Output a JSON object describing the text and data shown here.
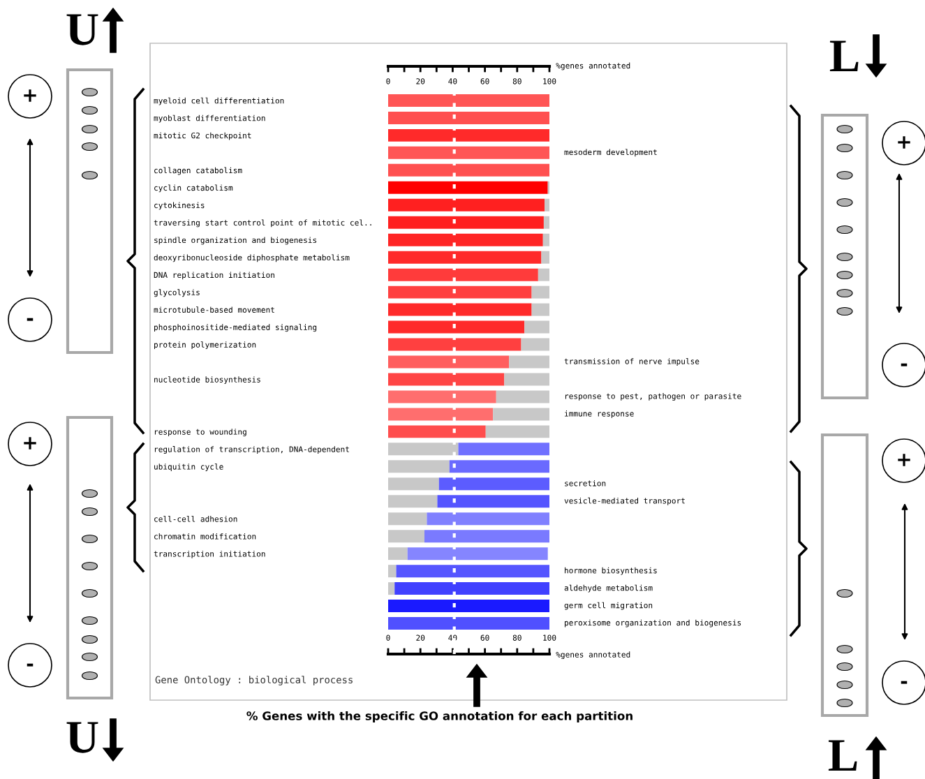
{
  "chart_data": {
    "type": "bar",
    "orientation": "horizontal",
    "stacked": true,
    "categories": [
      "myeloid cell differentiation",
      "myoblast differentiation",
      "mitotic G2 checkpoint",
      null,
      "collagen catabolism",
      "cyclin catabolism",
      "cytokinesis",
      "traversing start control point of mitotic cel..",
      "spindle organization and biogenesis",
      "deoxyribonucleoside diphosphate metabolism",
      "DNA replication initiation",
      "glycolysis",
      "microtubule-based movement",
      "phosphoinositide-mediated signaling",
      "protein polymerization",
      null,
      "nucleotide biosynthesis",
      null,
      null,
      "response to wounding",
      "regulation of transcription, DNA-dependent",
      "ubiquitin cycle",
      null,
      null,
      "cell-cell adhesion",
      "chromatin modification",
      "transcription initiation",
      null,
      null,
      null,
      null
    ],
    "y2_categories": [
      null,
      null,
      null,
      "mesoderm development",
      null,
      null,
      null,
      null,
      null,
      null,
      null,
      null,
      null,
      null,
      null,
      "transmission of nerve impulse",
      null,
      "response to pest, pathogen or parasite",
      "immune response",
      null,
      null,
      null,
      "secretion",
      "vesicle-mediated transport",
      null,
      null,
      null,
      "hormone biosynthesis",
      "aldehyde metabolism",
      "germ cell migration",
      "peroxisome organization and biogenesis"
    ],
    "series": [
      {
        "colors": [
          "#ff5555",
          "#ff5050",
          "#ff2a2a",
          "#ff5555",
          "#ff5050",
          "#ff0000",
          "#ff2020",
          "#ff2020",
          "#ff2525",
          "#ff2a2a",
          "#ff3b3b",
          "#ff4040",
          "#ff2a2a",
          "#ff2a2a",
          "#ff4040",
          "#ff5e5e",
          "#ff4545",
          "#ff6e6e",
          "#ff6e6e",
          "#ff4d4d",
          null,
          null,
          null,
          null,
          null,
          null,
          null,
          null,
          null,
          null,
          null
        ],
        "values": [
          100,
          100,
          100,
          100,
          100,
          99,
          97,
          96.5,
          96,
          95,
          93,
          89,
          89,
          84.5,
          82.5,
          75,
          72,
          67,
          65,
          60.5,
          null,
          null,
          null,
          null,
          null,
          null,
          null,
          null,
          null,
          null,
          null
        ]
      },
      {
        "color": "#c8c8c8",
        "values": [
          null,
          null,
          null,
          null,
          null,
          1,
          3,
          3.5,
          4,
          5,
          7,
          11,
          11,
          15.5,
          17.5,
          25,
          28,
          33,
          35,
          39.5,
          43.5,
          38,
          31.5,
          30.5,
          24,
          22.5,
          12,
          5,
          4,
          null,
          null
        ]
      },
      {
        "colors": [
          null,
          null,
          null,
          null,
          null,
          null,
          null,
          null,
          null,
          null,
          null,
          null,
          null,
          null,
          null,
          null,
          null,
          null,
          null,
          null,
          "#7070ff",
          "#6a6aff",
          "#5c5cff",
          "#5555ff",
          "#8080ff",
          "#7a7aff",
          "#8585ff",
          "#5555ff",
          "#4040ff",
          "#1a1aff",
          "#5050ff"
        ],
        "values": [
          null,
          null,
          null,
          null,
          null,
          null,
          null,
          null,
          null,
          null,
          null,
          null,
          null,
          null,
          null,
          null,
          null,
          null,
          null,
          null,
          56.5,
          62,
          68.5,
          69.5,
          76,
          77.5,
          87,
          95,
          96,
          100,
          100
        ]
      }
    ],
    "xlim": [
      0,
      100
    ],
    "xticks": [
      0,
      {
        "value": 10,
        "label": null
      },
      20,
      {
        "value": 30,
        "label": null
      },
      40,
      {
        "value": 50,
        "label": null
      },
      60,
      {
        "value": 70,
        "label": null
      },
      80,
      {
        "value": 90,
        "label": null
      },
      100
    ],
    "x2lim": [
      0,
      100
    ],
    "x2ticks": [
      0,
      {
        "value": 10,
        "label": null
      },
      20,
      {
        "value": 30,
        "label": null
      },
      40,
      {
        "value": 50,
        "label": null
      },
      60,
      {
        "value": 70,
        "label": null
      },
      80,
      {
        "value": 90,
        "label": null
      },
      100
    ],
    "xlabel": "%genes annotated",
    "x2label": "%genes annotated",
    "ref_lines": [
      {
        "axis": "x",
        "value": 41,
        "color": "#ffffff",
        "line_style": "dotted"
      }
    ],
    "grid": false,
    "legend": false,
    "annotations": [
      "Gene Ontology : biological process",
      "% Genes with the specific GO annotation for each partition",
      "U",
      "L",
      "U",
      "L",
      "+",
      "-",
      "+",
      "-",
      "+",
      "-",
      "+",
      "-"
    ]
  }
}
